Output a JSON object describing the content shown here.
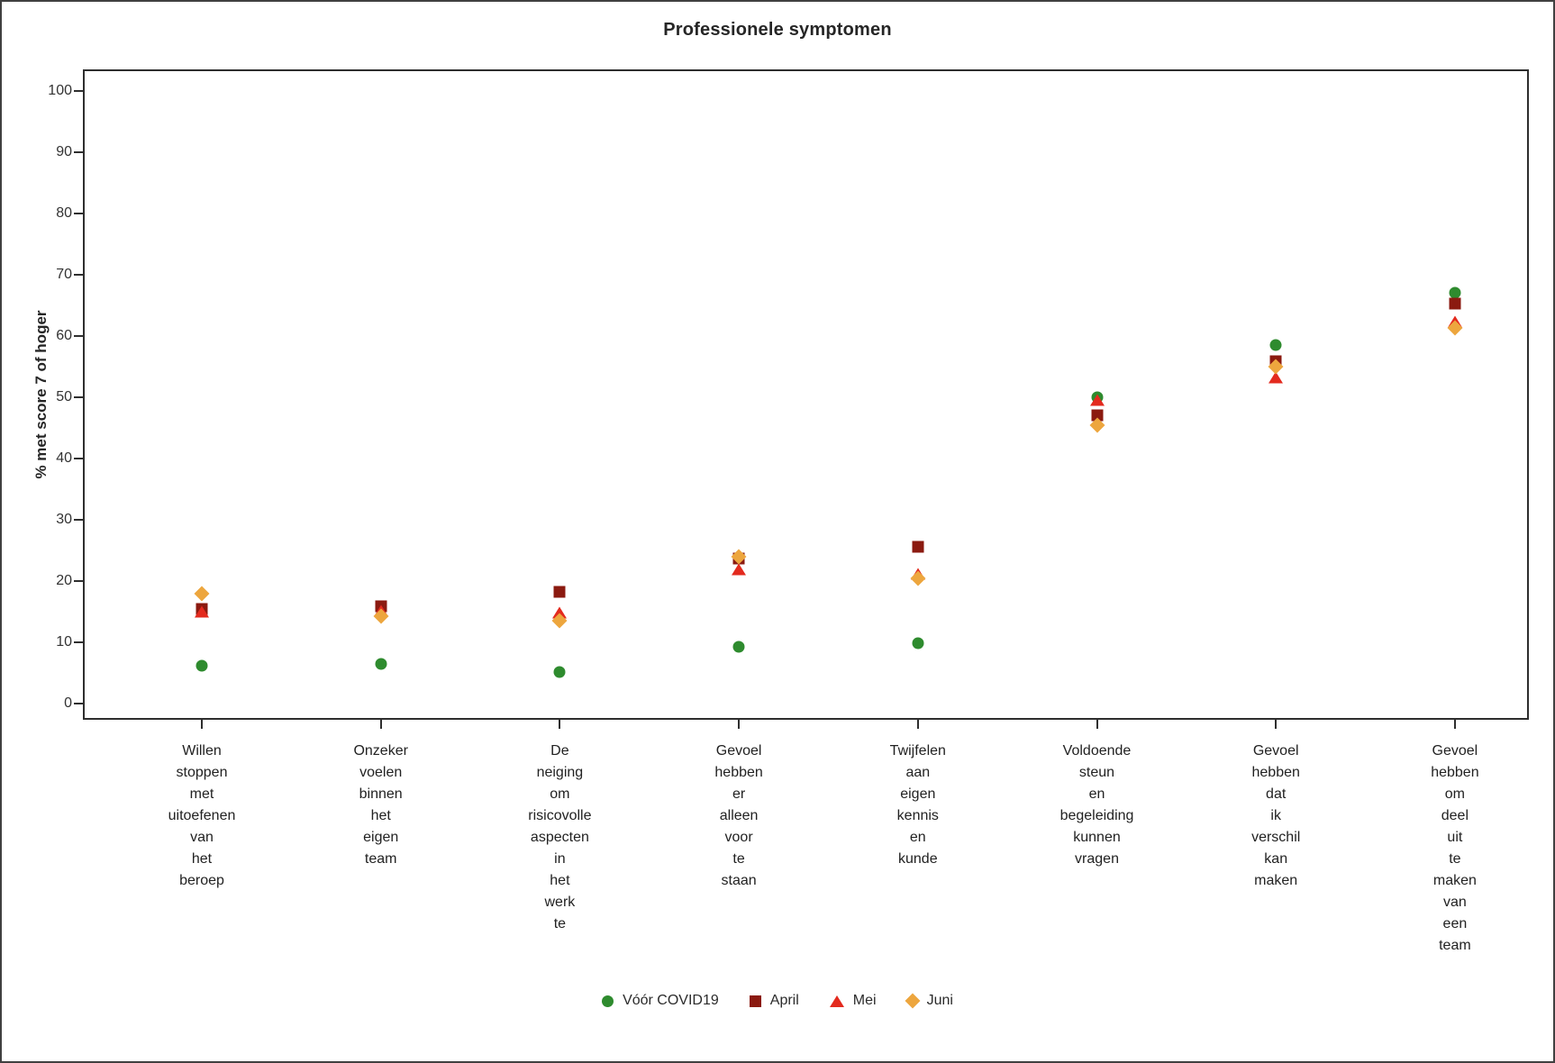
{
  "title": "Professionele symptomen",
  "ylabel": "% met score 7 of hoger",
  "chart_data": {
    "type": "scatter",
    "title": "Professionele symptomen",
    "ylabel": "% met score 7 of hoger",
    "xlabel": "",
    "ylim": [
      0,
      100
    ],
    "ytick_step": 10,
    "yticks": [
      0,
      10,
      20,
      30,
      40,
      50,
      60,
      70,
      80,
      90,
      100
    ],
    "grid": false,
    "legend_position": "bottom",
    "categories": [
      "Willen stoppen met uitoefenen van het beroep",
      "Onzeker voelen binnen het eigen team",
      "De neiging om risicovolle aspecten in het werk te",
      "Gevoel hebben er alleen voor te staan",
      "Twijfelen aan eigen kennis en kunde",
      "Voldoende steun en begeleiding kunnen vragen",
      "Gevoel hebben dat ik verschil kan maken",
      "Gevoel hebben om deel uit te maken van een team"
    ],
    "series": [
      {
        "name": "Vóór COVID19",
        "marker": "circle",
        "color": "#2e8b2e",
        "values": [
          6.2,
          6.5,
          5.1,
          9.2,
          9.9,
          50.0,
          58.5,
          67.0
        ]
      },
      {
        "name": "April",
        "marker": "square",
        "color": "#8b1a10",
        "values": [
          15.4,
          15.9,
          18.2,
          23.7,
          25.6,
          47.1,
          55.9,
          65.3
        ]
      },
      {
        "name": "Mei",
        "marker": "triangle",
        "color": "#e32a1e",
        "values": [
          15.0,
          15.2,
          14.9,
          21.9,
          21.2,
          49.6,
          53.2,
          62.4
        ]
      },
      {
        "name": "Juni",
        "marker": "diamond",
        "color": "#eda63e",
        "values": [
          17.9,
          14.3,
          13.5,
          24.0,
          20.4,
          45.4,
          55.0,
          61.3
        ]
      }
    ]
  }
}
